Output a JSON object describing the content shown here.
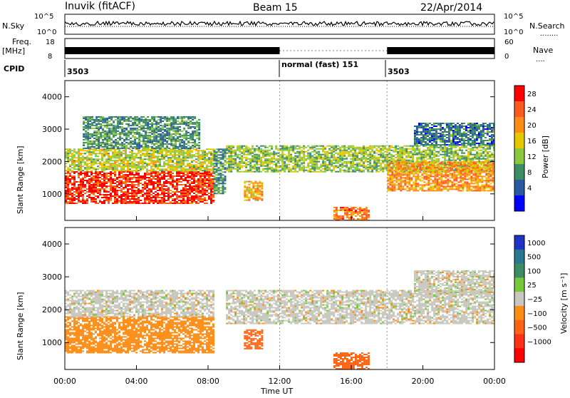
{
  "header": {
    "station": "Inuvik (fitACF)",
    "beam": "Beam 15",
    "date": "22/Apr/2014"
  },
  "noise_panel": {
    "left_label": "N.Sky",
    "right_label": "N.Search",
    "left_ticks": [
      "10^5",
      "10^0"
    ],
    "right_ticks": [
      "10^5",
      "10^0"
    ],
    "legend_line": "........"
  },
  "freq_panel": {
    "left_label_1": "Freq.",
    "left_label_2": "[MHz]",
    "right_label": "Nave",
    "left_ticks": [
      "18",
      "8"
    ],
    "right_ticks": [
      "60",
      "0"
    ],
    "legend_line": "...."
  },
  "cpid_panel": {
    "label": "CPID",
    "segments": [
      "3503",
      "normal (fast) 151",
      "3503"
    ]
  },
  "power_panel": {
    "ylabel": "Slant Range [km]",
    "yticks": [
      "4000",
      "3000",
      "2000",
      "1000"
    ],
    "cbar_label": "Power [dB]",
    "cbar_ticks": [
      "28",
      "24",
      "20",
      "16",
      "12",
      "8",
      "4"
    ],
    "cbar_colors": [
      "#ff0000",
      "#ff5a1e",
      "#ff8c14",
      "#e6c800",
      "#8cc83c",
      "#3c8c64",
      "#285aa0",
      "#0000ff"
    ]
  },
  "velocity_panel": {
    "ylabel": "Slant Range [km]",
    "yticks": [
      "4000",
      "3000",
      "2000",
      "1000"
    ],
    "cbar_label": "Velocity [m s⁻¹]",
    "cbar_ticks": [
      "1000",
      "500",
      "100",
      "25",
      "−25",
      "−100",
      "−500",
      "−1000"
    ],
    "cbar_colors": [
      "#1e32c8",
      "#287890",
      "#3c8c64",
      "#78c83c",
      "#c8c8c0",
      "#ff8c14",
      "#ff6414",
      "#ff3214",
      "#ff0000"
    ]
  },
  "x_axis": {
    "label": "Time UT",
    "ticks": [
      "00:00",
      "04:00",
      "08:00",
      "12:00",
      "16:00",
      "20:00",
      "00:00"
    ]
  },
  "chart_data": {
    "type": "heatmap",
    "x_range_hours": [
      0,
      24
    ],
    "y_range_km": [
      180,
      4500
    ],
    "cpid_changes_hours": [
      12.0,
      18.0
    ],
    "power_regions": [
      {
        "t": [
          0.0,
          8.3
        ],
        "range_km": [
          700,
          1700
        ],
        "level_db": 26
      },
      {
        "t": [
          0.0,
          8.3
        ],
        "range_km": [
          1700,
          2400
        ],
        "level_db": 14
      },
      {
        "t": [
          1.0,
          7.5
        ],
        "range_km": [
          2400,
          3400
        ],
        "level_db": 8
      },
      {
        "t": [
          8.3,
          9.0
        ],
        "range_km": [
          1000,
          2400
        ],
        "level_db": 8
      },
      {
        "t": [
          10.0,
          11.0
        ],
        "range_km": [
          800,
          1400
        ],
        "level_db": 18
      },
      {
        "t": [
          9.0,
          24.0
        ],
        "range_km": [
          1700,
          2500
        ],
        "level_db": 12
      },
      {
        "t": [
          18.0,
          24.0
        ],
        "range_km": [
          1100,
          2000
        ],
        "level_db": 20
      },
      {
        "t": [
          15.0,
          17.0
        ],
        "range_km": [
          200,
          600
        ],
        "level_db": 22
      },
      {
        "t": [
          19.5,
          24.0
        ],
        "range_km": [
          2500,
          3200
        ],
        "level_db": 6
      }
    ],
    "velocity_regions": [
      {
        "t": [
          0.0,
          8.3
        ],
        "range_km": [
          700,
          1800
        ],
        "velocity_ms": -60
      },
      {
        "t": [
          0.0,
          8.3
        ],
        "range_km": [
          1800,
          2600
        ],
        "velocity_ms": 0
      },
      {
        "t": [
          9.0,
          24.0
        ],
        "range_km": [
          1600,
          2600
        ],
        "velocity_ms": 0
      },
      {
        "t": [
          10.0,
          11.0
        ],
        "range_km": [
          800,
          1400
        ],
        "velocity_ms": -200
      },
      {
        "t": [
          15.0,
          17.0
        ],
        "range_km": [
          200,
          700
        ],
        "velocity_ms": -300
      },
      {
        "t": [
          19.5,
          24.0
        ],
        "range_km": [
          2500,
          3200
        ],
        "velocity_ms": 0
      }
    ]
  }
}
